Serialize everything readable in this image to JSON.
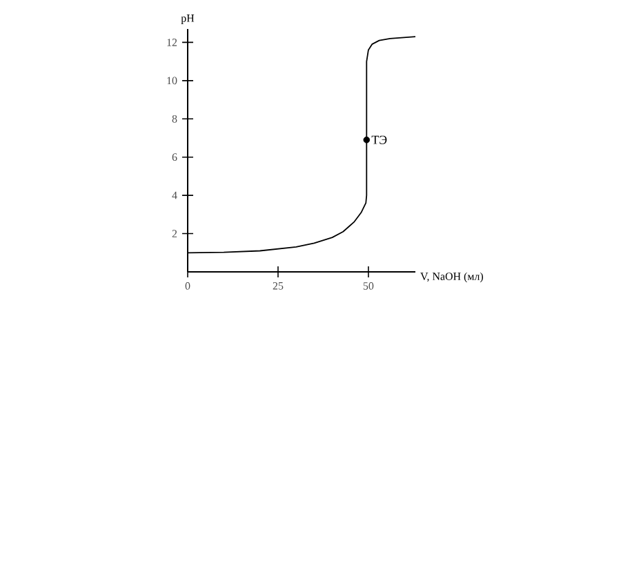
{
  "chart_data": {
    "type": "line",
    "xlabel": "V, NaOH (мл)",
    "ylabel": "pH",
    "xlim": [
      0,
      63
    ],
    "ylim": [
      0,
      12.7
    ],
    "xticks": [
      0,
      25,
      50
    ],
    "yticks": [
      2,
      4,
      6,
      8,
      10,
      12
    ],
    "series": [
      {
        "color": "#000000",
        "x": [
          0,
          10,
          20,
          30,
          35,
          40,
          43,
          46,
          48,
          49.3,
          49.5,
          49.5,
          50,
          51,
          53,
          56,
          63
        ],
        "values": [
          1.0,
          1.02,
          1.1,
          1.3,
          1.5,
          1.8,
          2.1,
          2.6,
          3.1,
          3.6,
          4.0,
          11.0,
          11.6,
          11.9,
          12.1,
          12.2,
          12.3
        ]
      },
      {
        "type": "scatter",
        "color": "#000000",
        "marker": "circle",
        "x": [
          49.5
        ],
        "values": [
          6.9
        ]
      }
    ],
    "annotations": [
      {
        "text": "ТЭ",
        "x": 49.5,
        "y": 6.9
      }
    ]
  }
}
